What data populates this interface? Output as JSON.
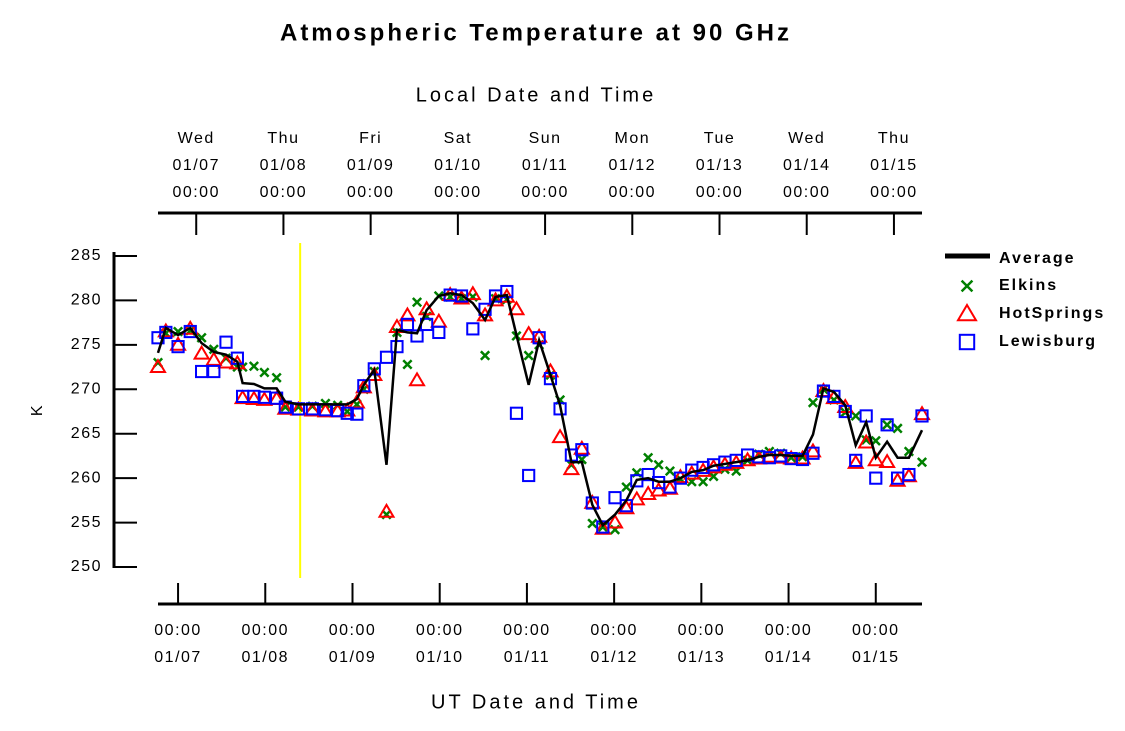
{
  "chart_data": {
    "type": "line",
    "title": "Atmospheric Temperature at 90 GHz",
    "x2label": "Local Date and Time",
    "xlabel": "UT Date and Time",
    "ylabel": "K",
    "xlim": [
      6.77,
      15.53
    ],
    "ylim": [
      250,
      285
    ],
    "yticks": [
      250,
      255,
      260,
      265,
      270,
      275,
      280,
      285
    ],
    "xticks": [
      {
        "value": 7,
        "label": "00:00",
        "date": "01/07"
      },
      {
        "value": 8,
        "label": "00:00",
        "date": "01/08"
      },
      {
        "value": 9,
        "label": "00:00",
        "date": "01/09"
      },
      {
        "value": 10,
        "label": "00:00",
        "date": "01/10"
      },
      {
        "value": 11,
        "label": "00:00",
        "date": "01/11"
      },
      {
        "value": 12,
        "label": "00:00",
        "date": "01/12"
      },
      {
        "value": 13,
        "label": "00:00",
        "date": "01/13"
      },
      {
        "value": 14,
        "label": "00:00",
        "date": "01/14"
      },
      {
        "value": 15,
        "label": "00:00",
        "date": "01/15"
      }
    ],
    "x2ticks": [
      {
        "value": 7.2083,
        "label": "00:00",
        "date": "01/07",
        "day": "Wed"
      },
      {
        "value": 8.2083,
        "label": "00:00",
        "date": "01/08",
        "day": "Thu"
      },
      {
        "value": 9.2083,
        "label": "00:00",
        "date": "01/09",
        "day": "Fri"
      },
      {
        "value": 10.2083,
        "label": "00:00",
        "date": "01/10",
        "day": "Sat"
      },
      {
        "value": 11.2083,
        "label": "00:00",
        "date": "01/11",
        "day": "Sun"
      },
      {
        "value": 12.2083,
        "label": "00:00",
        "date": "01/12",
        "day": "Mon"
      },
      {
        "value": 13.2083,
        "label": "00:00",
        "date": "01/13",
        "day": "Tue"
      },
      {
        "value": 14.2083,
        "label": "00:00",
        "date": "01/14",
        "day": "Wed"
      },
      {
        "value": 15.2083,
        "label": "00:00",
        "date": "01/15",
        "day": "Thu"
      }
    ],
    "vline": {
      "x": 8.4,
      "color": "#ffff00"
    },
    "legend": "right",
    "x": [
      6.77,
      6.86,
      7.0,
      7.14,
      7.27,
      7.41,
      7.55,
      7.68,
      7.74,
      7.87,
      7.99,
      8.13,
      8.23,
      8.38,
      8.54,
      8.69,
      8.83,
      8.94,
      9.05,
      9.13,
      9.25,
      9.39,
      9.51,
      9.63,
      9.74,
      9.85,
      9.99,
      10.12,
      10.25,
      10.38,
      10.52,
      10.64,
      10.77,
      10.88,
      11.02,
      11.14,
      11.27,
      11.38,
      11.51,
      11.63,
      11.75,
      11.87,
      12.01,
      12.14,
      12.26,
      12.39,
      12.51,
      12.64,
      12.76,
      12.89,
      13.02,
      13.14,
      13.27,
      13.4,
      13.53,
      13.66,
      13.78,
      13.91,
      14.03,
      14.16,
      14.28,
      14.4,
      14.52,
      14.65,
      14.77,
      14.89,
      15.0,
      15.13,
      15.25,
      15.38,
      15.53
    ],
    "series": [
      {
        "name": "Average",
        "color": "#000000",
        "marker": "line",
        "values": [
          274.1,
          276.9,
          276.1,
          276.9,
          275.2,
          274.2,
          273.9,
          273.1,
          270.7,
          270.6,
          270.1,
          270.1,
          268.6,
          268.3,
          268.3,
          268.3,
          268.3,
          268.3,
          268.9,
          270.5,
          272.2,
          261.5,
          276.7,
          276.4,
          276.3,
          278.9,
          280.5,
          280.8,
          280.6,
          279.7,
          277.8,
          280.4,
          280.6,
          276.1,
          270.5,
          275.5,
          271.6,
          268.2,
          261.8,
          261.8,
          257.0,
          254.7,
          255.9,
          257.5,
          259.8,
          260.0,
          259.6,
          259.6,
          260.0,
          260.7,
          260.9,
          261.4,
          261.6,
          261.8,
          262.0,
          262.4,
          262.6,
          262.6,
          262.5,
          262.5,
          264.9,
          270.1,
          269.7,
          268.2,
          263.7,
          266.3,
          262.3,
          264.1,
          262.3,
          262.3,
          265.4
        ]
      },
      {
        "name": "Elkins",
        "color": "#008000",
        "marker": "x",
        "values": [
          273.0,
          276.3,
          276.5,
          276.6,
          275.8,
          274.5,
          273.5,
          272.5,
          272.5,
          272.6,
          271.9,
          271.3,
          268.0,
          268.0,
          268.1,
          268.4,
          268.2,
          267.5,
          268.3,
          270.0,
          272.0,
          255.9,
          276.4,
          272.8,
          279.8,
          278.2,
          280.5,
          280.4,
          280.2,
          280.4,
          273.8,
          280.2,
          280.1,
          276.0,
          273.8,
          275.0,
          271.6,
          268.8,
          261.5,
          262.1,
          254.9,
          254.5,
          254.2,
          259.0,
          260.6,
          262.3,
          261.5,
          260.8,
          259.9,
          259.6,
          259.6,
          260.2,
          261.0,
          260.8,
          262.0,
          262.7,
          263.0,
          262.8,
          262.3,
          262.4,
          268.5,
          270.0,
          268.8,
          267.4,
          267.0,
          264.3,
          264.2,
          266.0,
          265.6,
          263.0,
          261.8
        ]
      },
      {
        "name": "HotSprings",
        "color": "#ff0000",
        "marker": "triangle",
        "values": [
          272.5,
          276.5,
          275.0,
          276.8,
          274.0,
          273.3,
          273.0,
          272.9,
          269.0,
          268.9,
          268.8,
          268.9,
          267.8,
          267.7,
          267.6,
          267.5,
          267.5,
          267.6,
          268.5,
          270.2,
          271.6,
          256.2,
          277.0,
          278.3,
          271.0,
          279.0,
          277.6,
          280.6,
          280.2,
          280.7,
          278.3,
          280.0,
          280.4,
          279.0,
          276.2,
          275.9,
          272.0,
          264.6,
          261.0,
          263.3,
          257.2,
          254.3,
          255.0,
          256.6,
          257.6,
          258.2,
          258.6,
          258.8,
          260.1,
          260.5,
          260.8,
          261.2,
          261.5,
          261.7,
          262.0,
          262.2,
          262.4,
          262.3,
          262.2,
          262.2,
          263.0,
          269.8,
          269.0,
          268.0,
          261.7,
          264.0,
          262.0,
          261.8,
          259.7,
          260.2,
          267.2
        ]
      },
      {
        "name": "Lewisburg",
        "color": "#0000ff",
        "marker": "square",
        "values": [
          275.8,
          276.4,
          274.8,
          276.5,
          272.0,
          272.0,
          275.3,
          273.5,
          269.2,
          269.2,
          269.1,
          269.0,
          268.0,
          267.8,
          267.8,
          267.7,
          267.6,
          267.3,
          267.2,
          270.4,
          272.3,
          273.6,
          274.8,
          277.3,
          276.0,
          277.3,
          276.4,
          280.6,
          280.5,
          276.8,
          279.0,
          280.5,
          281.0,
          267.3,
          260.3,
          275.8,
          271.2,
          267.8,
          262.6,
          263.2,
          257.2,
          254.5,
          257.8,
          256.9,
          259.7,
          260.4,
          259.5,
          259.0,
          260.0,
          260.9,
          261.2,
          261.5,
          261.8,
          262.0,
          262.6,
          262.4,
          262.3,
          262.5,
          262.2,
          262.1,
          262.8,
          269.8,
          269.2,
          267.5,
          262.0,
          267.0,
          260.0,
          266.0,
          260.0,
          260.4,
          267.0
        ]
      }
    ]
  }
}
